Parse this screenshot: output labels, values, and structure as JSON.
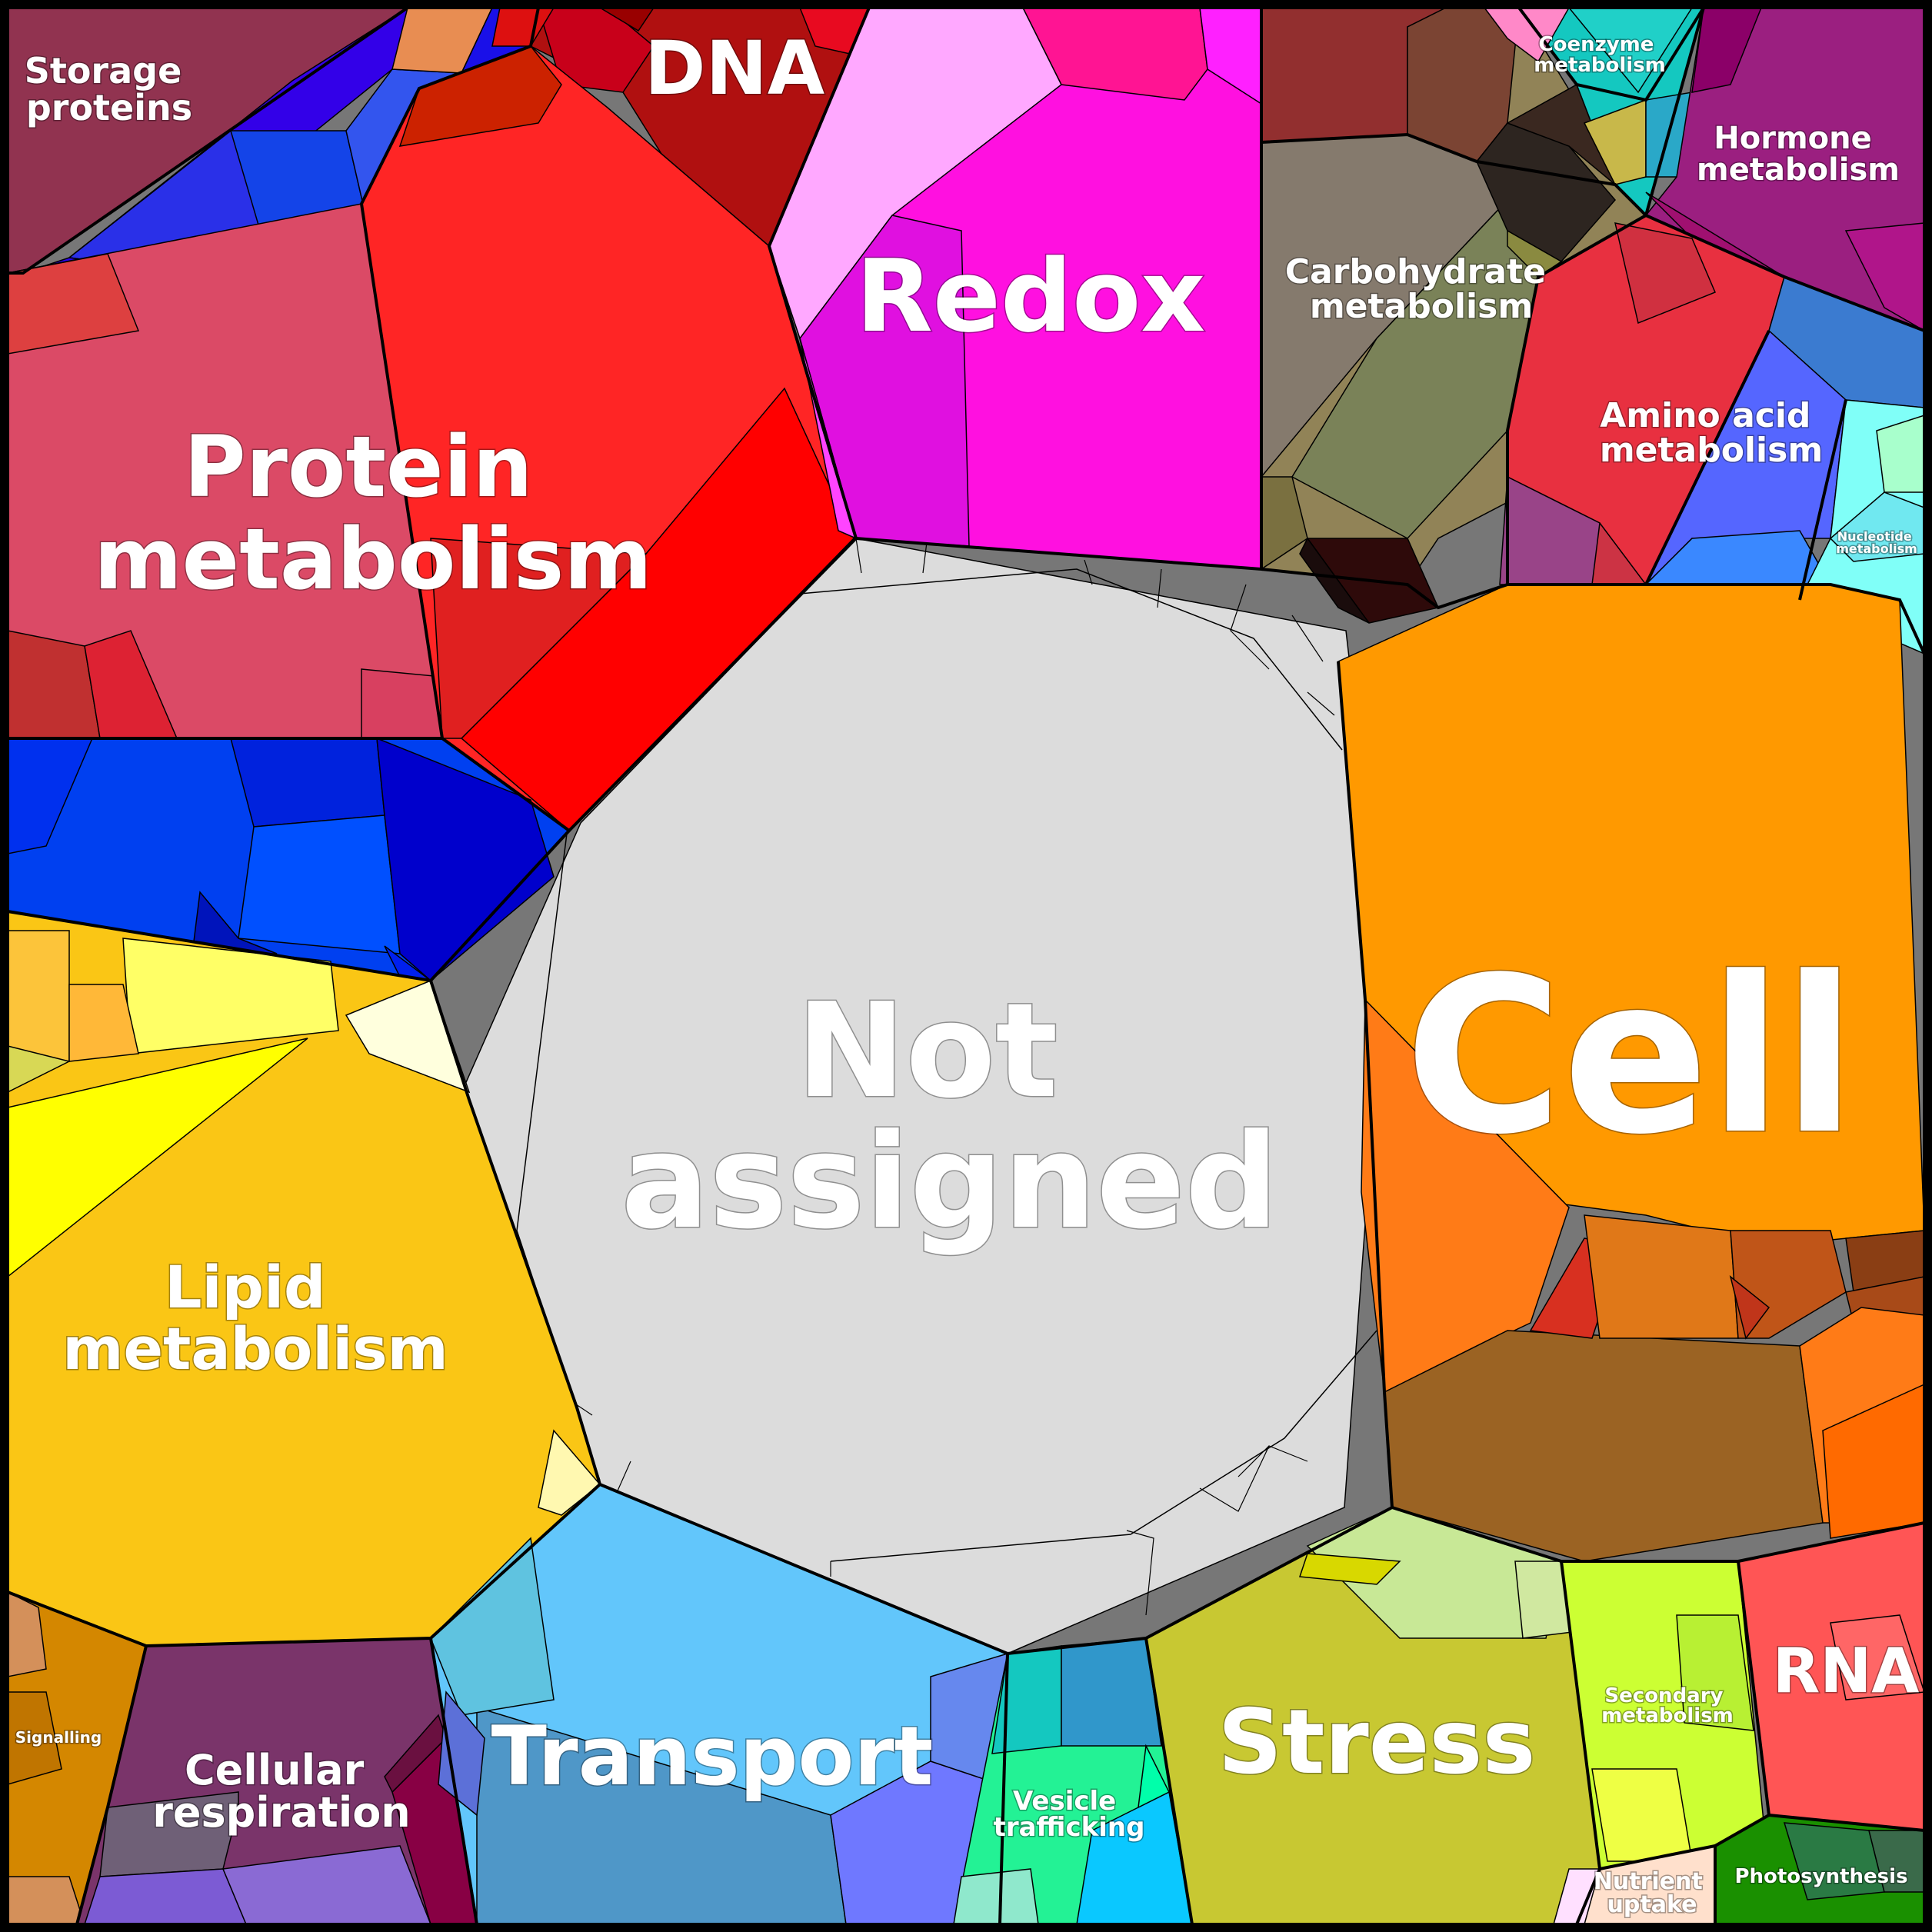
{
  "diagram": {
    "type": "voronoi-treemap",
    "categories": [
      {
        "id": "not-assigned",
        "label_lines": [
          "Not",
          "assigned"
        ],
        "color": "#dcdcdc"
      },
      {
        "id": "cell",
        "label_lines": [
          "Cell"
        ],
        "color": "#ff9900"
      },
      {
        "id": "protein-metabolism",
        "label_lines": [
          "Protein",
          "metabolism"
        ],
        "color": "#ff2020"
      },
      {
        "id": "redox",
        "label_lines": [
          "Redox"
        ],
        "color": "#ff10e0"
      },
      {
        "id": "dna",
        "label_lines": [
          "DNA"
        ],
        "color": "#b01010"
      },
      {
        "id": "storage-proteins",
        "label_lines": [
          "Storage",
          "proteins"
        ],
        "color": "#913350"
      },
      {
        "id": "carbohydrate-metabolism",
        "label_lines": [
          "Carbohydrate",
          "metabolism"
        ],
        "color": "#918357"
      },
      {
        "id": "coenzyme-metabolism",
        "label_lines": [
          "Coenzyme",
          "metabolism"
        ],
        "color": "#14c8c0"
      },
      {
        "id": "hormone-metabolism",
        "label_lines": [
          "Hormone",
          "metabolism"
        ],
        "color": "#9b1f80"
      },
      {
        "id": "amino-acid-metabolism",
        "label_lines": [
          "Amino acid",
          "metabolism"
        ],
        "color": "#e83040"
      },
      {
        "id": "nucleotide-metabolism",
        "label_lines": [
          "Nucleotide",
          "metabolism"
        ],
        "color": "#80fff8"
      },
      {
        "id": "lipid-metabolism",
        "label_lines": [
          "Lipid",
          "metabolism"
        ],
        "color": "#fac615"
      },
      {
        "id": "signalling",
        "label_lines": [
          "Signalling"
        ],
        "color": "#d48700"
      },
      {
        "id": "cellular-respiration",
        "label_lines": [
          "Cellular",
          "respiration"
        ],
        "color": "#7a346a"
      },
      {
        "id": "transport",
        "label_lines": [
          "Transport"
        ],
        "color": "#62c6fb"
      },
      {
        "id": "vesicle-trafficking",
        "label_lines": [
          "Vesicle",
          "trafficking"
        ],
        "color": "#23f295"
      },
      {
        "id": "stress",
        "label_lines": [
          "Stress"
        ],
        "color": "#c8c832"
      },
      {
        "id": "secondary-metabolism",
        "label_lines": [
          "Secondary",
          "metabolism"
        ],
        "color": "#ccff33"
      },
      {
        "id": "rna",
        "label_lines": [
          "RNA"
        ],
        "color": "#ff5555"
      },
      {
        "id": "nutrient-uptake",
        "label_lines": [
          "Nutrient",
          "uptake"
        ],
        "color": "#ffe0cc"
      },
      {
        "id": "photosynthesis",
        "label_lines": [
          "Photosynthesis"
        ],
        "color": "#1a9000"
      }
    ]
  }
}
